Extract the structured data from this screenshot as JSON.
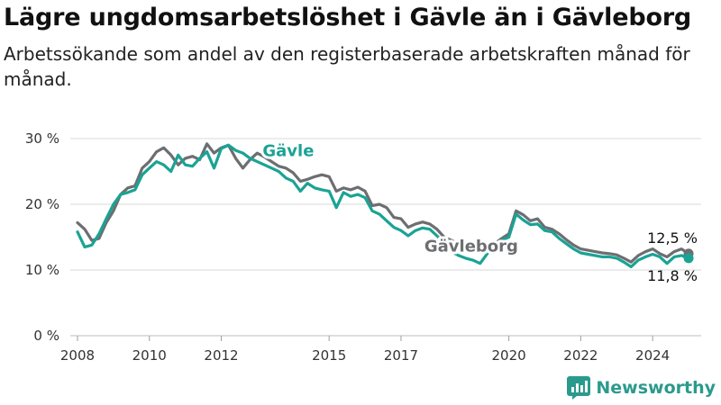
{
  "title": "Lägre ungdomsarbetslöshet i Gävle än i Gävleborg",
  "subtitle": "Arbetssökande som andel av den registerbaserade arbetskraften månad för månad.",
  "brand": "Newsworthy",
  "colors": {
    "gavle": "#1aa394",
    "gavleborg": "#6d6e71",
    "grid": "#d9d9d9",
    "brand": "#2a9a8c"
  },
  "chart_data": {
    "type": "line",
    "ylim": [
      0,
      30
    ],
    "xlim": [
      2007.8,
      2025.35
    ],
    "y_ticks": [
      0,
      10,
      20,
      30
    ],
    "y_tick_labels": [
      "0 %",
      "10 %",
      "20 %",
      "30 %"
    ],
    "x_ticks": [
      2008,
      2010,
      2012,
      2015,
      2017,
      2020,
      2022,
      2024
    ],
    "x_tick_labels": [
      "2008",
      "2010",
      "2012",
      "2015",
      "2017",
      "2020",
      "2022",
      "2024"
    ],
    "series": [
      {
        "name": "Gävleborg",
        "color": "#6d6e71",
        "end_label": "12,5 %",
        "points": [
          [
            2008.0,
            17.2
          ],
          [
            2008.2,
            16.2
          ],
          [
            2008.4,
            14.5
          ],
          [
            2008.6,
            14.8
          ],
          [
            2008.8,
            17.2
          ],
          [
            2009.0,
            19.0
          ],
          [
            2009.2,
            21.5
          ],
          [
            2009.4,
            22.5
          ],
          [
            2009.6,
            22.8
          ],
          [
            2009.8,
            25.5
          ],
          [
            2010.0,
            26.5
          ],
          [
            2010.2,
            28.0
          ],
          [
            2010.4,
            28.6
          ],
          [
            2010.6,
            27.5
          ],
          [
            2010.8,
            26.0
          ],
          [
            2011.0,
            27.0
          ],
          [
            2011.2,
            27.3
          ],
          [
            2011.4,
            26.8
          ],
          [
            2011.6,
            29.2
          ],
          [
            2011.8,
            27.8
          ],
          [
            2012.0,
            28.6
          ],
          [
            2012.2,
            29.0
          ],
          [
            2012.4,
            27.0
          ],
          [
            2012.6,
            25.5
          ],
          [
            2012.8,
            26.8
          ],
          [
            2013.0,
            27.8
          ],
          [
            2013.2,
            27.2
          ],
          [
            2013.4,
            26.5
          ],
          [
            2013.6,
            25.8
          ],
          [
            2013.8,
            25.5
          ],
          [
            2014.0,
            24.8
          ],
          [
            2014.2,
            23.5
          ],
          [
            2014.4,
            23.8
          ],
          [
            2014.6,
            24.2
          ],
          [
            2014.8,
            24.5
          ],
          [
            2015.0,
            24.2
          ],
          [
            2015.2,
            22.0
          ],
          [
            2015.4,
            22.5
          ],
          [
            2015.6,
            22.2
          ],
          [
            2015.8,
            22.6
          ],
          [
            2016.0,
            22.0
          ],
          [
            2016.2,
            19.8
          ],
          [
            2016.4,
            20.0
          ],
          [
            2016.6,
            19.5
          ],
          [
            2016.8,
            18.0
          ],
          [
            2017.0,
            17.8
          ],
          [
            2017.2,
            16.5
          ],
          [
            2017.4,
            17.0
          ],
          [
            2017.6,
            17.3
          ],
          [
            2017.8,
            17.0
          ],
          [
            2018.0,
            16.2
          ],
          [
            2018.2,
            15.0
          ],
          [
            2018.4,
            14.5
          ],
          [
            2018.6,
            14.0
          ],
          [
            2018.8,
            13.5
          ],
          [
            2019.0,
            13.0
          ],
          [
            2019.2,
            12.8
          ],
          [
            2019.4,
            13.2
          ],
          [
            2019.6,
            14.0
          ],
          [
            2019.8,
            14.8
          ],
          [
            2020.0,
            15.5
          ],
          [
            2020.2,
            19.0
          ],
          [
            2020.4,
            18.4
          ],
          [
            2020.6,
            17.5
          ],
          [
            2020.8,
            17.8
          ],
          [
            2021.0,
            16.5
          ],
          [
            2021.2,
            16.2
          ],
          [
            2021.4,
            15.5
          ],
          [
            2021.6,
            14.6
          ],
          [
            2021.8,
            13.8
          ],
          [
            2022.0,
            13.2
          ],
          [
            2022.2,
            13.0
          ],
          [
            2022.4,
            12.8
          ],
          [
            2022.6,
            12.6
          ],
          [
            2022.8,
            12.5
          ],
          [
            2023.0,
            12.3
          ],
          [
            2023.2,
            11.8
          ],
          [
            2023.4,
            11.2
          ],
          [
            2023.6,
            12.2
          ],
          [
            2023.8,
            12.8
          ],
          [
            2024.0,
            13.2
          ],
          [
            2024.2,
            12.5
          ],
          [
            2024.4,
            12.0
          ],
          [
            2024.6,
            12.8
          ],
          [
            2024.8,
            13.2
          ],
          [
            2025.0,
            12.5
          ]
        ]
      },
      {
        "name": "Gävle",
        "color": "#1aa394",
        "end_label": "11,8 %",
        "points": [
          [
            2008.0,
            15.8
          ],
          [
            2008.2,
            13.5
          ],
          [
            2008.4,
            13.8
          ],
          [
            2008.6,
            15.5
          ],
          [
            2008.8,
            17.8
          ],
          [
            2009.0,
            20.0
          ],
          [
            2009.2,
            21.5
          ],
          [
            2009.4,
            21.8
          ],
          [
            2009.6,
            22.2
          ],
          [
            2009.8,
            24.5
          ],
          [
            2010.0,
            25.5
          ],
          [
            2010.2,
            26.5
          ],
          [
            2010.4,
            26.0
          ],
          [
            2010.6,
            25.0
          ],
          [
            2010.8,
            27.5
          ],
          [
            2011.0,
            26.0
          ],
          [
            2011.2,
            25.8
          ],
          [
            2011.4,
            27.0
          ],
          [
            2011.6,
            28.0
          ],
          [
            2011.8,
            25.5
          ],
          [
            2012.0,
            28.5
          ],
          [
            2012.2,
            29.0
          ],
          [
            2012.4,
            28.2
          ],
          [
            2012.6,
            27.8
          ],
          [
            2012.8,
            27.0
          ],
          [
            2013.0,
            26.5
          ],
          [
            2013.2,
            26.0
          ],
          [
            2013.4,
            25.5
          ],
          [
            2013.6,
            25.0
          ],
          [
            2013.8,
            24.0
          ],
          [
            2014.0,
            23.5
          ],
          [
            2014.2,
            22.0
          ],
          [
            2014.4,
            23.2
          ],
          [
            2014.6,
            22.5
          ],
          [
            2014.8,
            22.2
          ],
          [
            2015.0,
            22.0
          ],
          [
            2015.2,
            19.5
          ],
          [
            2015.4,
            21.8
          ],
          [
            2015.6,
            21.2
          ],
          [
            2015.8,
            21.5
          ],
          [
            2016.0,
            21.0
          ],
          [
            2016.2,
            19.0
          ],
          [
            2016.4,
            18.5
          ],
          [
            2016.6,
            17.5
          ],
          [
            2016.8,
            16.5
          ],
          [
            2017.0,
            16.0
          ],
          [
            2017.2,
            15.2
          ],
          [
            2017.4,
            16.0
          ],
          [
            2017.6,
            16.4
          ],
          [
            2017.8,
            16.2
          ],
          [
            2018.0,
            15.2
          ],
          [
            2018.2,
            14.2
          ],
          [
            2018.4,
            12.8
          ],
          [
            2018.6,
            12.2
          ],
          [
            2018.8,
            11.8
          ],
          [
            2019.0,
            11.5
          ],
          [
            2019.2,
            11.0
          ],
          [
            2019.4,
            12.5
          ],
          [
            2019.6,
            13.8
          ],
          [
            2019.8,
            14.5
          ],
          [
            2020.0,
            15.0
          ],
          [
            2020.2,
            18.5
          ],
          [
            2020.4,
            17.6
          ],
          [
            2020.6,
            16.9
          ],
          [
            2020.8,
            17.0
          ],
          [
            2021.0,
            16.0
          ],
          [
            2021.2,
            15.8
          ],
          [
            2021.4,
            14.8
          ],
          [
            2021.6,
            14.0
          ],
          [
            2021.8,
            13.2
          ],
          [
            2022.0,
            12.6
          ],
          [
            2022.2,
            12.4
          ],
          [
            2022.4,
            12.2
          ],
          [
            2022.6,
            12.0
          ],
          [
            2022.8,
            12.0
          ],
          [
            2023.0,
            11.8
          ],
          [
            2023.2,
            11.2
          ],
          [
            2023.4,
            10.5
          ],
          [
            2023.6,
            11.5
          ],
          [
            2023.8,
            12.0
          ],
          [
            2024.0,
            12.4
          ],
          [
            2024.2,
            12.0
          ],
          [
            2024.4,
            11.0
          ],
          [
            2024.6,
            12.0
          ],
          [
            2024.8,
            12.2
          ],
          [
            2025.0,
            11.8
          ]
        ]
      }
    ],
    "series_labels": [
      {
        "series": "Gävle",
        "text": "Gävle"
      },
      {
        "series": "Gävleborg",
        "text": "Gävleborg"
      }
    ]
  }
}
